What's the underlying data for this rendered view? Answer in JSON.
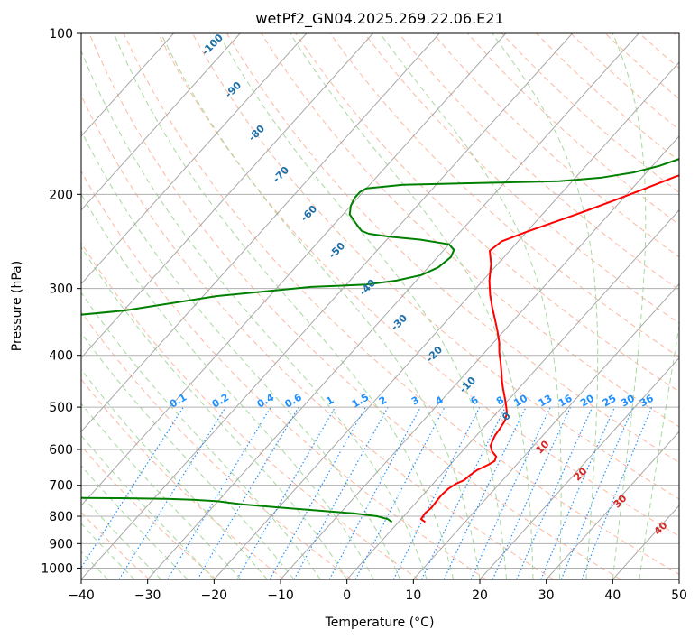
{
  "chart_data": {
    "type": "line",
    "title": "wetPf2_GN04.2025.269.22.06.E21",
    "xlabel": "Temperature (°C)",
    "ylabel": "Pressure (hPa)",
    "xlim": [
      -40,
      50
    ],
    "ylim": [
      1050,
      100
    ],
    "y_scale": "log",
    "grid": true,
    "x_ticks": [
      -40,
      -30,
      -20,
      -10,
      0,
      10,
      20,
      30,
      40,
      50
    ],
    "y_ticks": [
      100,
      200,
      300,
      400,
      500,
      600,
      700,
      800,
      900,
      1000
    ],
    "skew_t": true,
    "series": [
      {
        "id": "temperature",
        "color": "#ff0000",
        "points": [
          [
            4,
            820
          ],
          [
            3,
            810
          ],
          [
            2.8,
            790
          ],
          [
            3,
            770
          ],
          [
            2.9,
            750
          ],
          [
            2.8,
            730
          ],
          [
            3,
            710
          ],
          [
            3.5,
            695
          ],
          [
            4.2,
            685
          ],
          [
            4.4,
            670
          ],
          [
            4.8,
            655
          ],
          [
            5.8,
            640
          ],
          [
            6.2,
            630
          ],
          [
            5.8,
            618
          ],
          [
            4.5,
            605
          ],
          [
            3.5,
            590
          ],
          [
            3.2,
            580
          ],
          [
            2.8,
            565
          ],
          [
            2.6,
            548
          ],
          [
            2.3,
            530
          ],
          [
            1.5,
            512
          ],
          [
            0.3,
            495
          ],
          [
            -1,
            478
          ],
          [
            -2.3,
            462
          ],
          [
            -3.5,
            447
          ],
          [
            -4.8,
            430
          ],
          [
            -6.2,
            413
          ],
          [
            -7.8,
            395
          ],
          [
            -9.2,
            378
          ],
          [
            -11,
            360
          ],
          [
            -13,
            342
          ],
          [
            -15,
            325
          ],
          [
            -17,
            308
          ],
          [
            -19,
            290
          ],
          [
            -21,
            270
          ],
          [
            -23,
            255
          ],
          [
            -22.5,
            245
          ],
          [
            -20,
            235
          ],
          [
            -17,
            225
          ],
          [
            -14,
            215
          ],
          [
            -11,
            205
          ],
          [
            -8,
            195
          ],
          [
            -5,
            185
          ],
          [
            -1,
            177
          ],
          [
            3,
            170
          ],
          [
            7,
            163
          ],
          [
            11,
            155
          ],
          [
            15,
            147
          ],
          [
            19,
            140
          ],
          [
            23,
            132
          ],
          [
            28,
            125
          ],
          [
            33,
            118
          ],
          [
            38,
            112
          ],
          [
            42,
            107
          ],
          [
            45,
            103
          ],
          [
            47,
            100
          ]
        ]
      },
      {
        "id": "dewpoint",
        "color": "#008000",
        "points": [
          [
            -1,
            820
          ],
          [
            -2,
            810
          ],
          [
            -4,
            800
          ],
          [
            -8,
            790
          ],
          [
            -14,
            780
          ],
          [
            -20,
            770
          ],
          [
            -26,
            760
          ],
          [
            -30,
            750
          ],
          [
            -34,
            745
          ],
          [
            -38,
            742
          ],
          [
            -45,
            740
          ],
          [
            -60,
            738
          ],
          [
            -80,
            736
          ],
          [
            -80,
            340
          ],
          [
            -70,
            330
          ],
          [
            -58,
            310
          ],
          [
            -45,
            298
          ],
          [
            -37,
            295
          ],
          [
            -33,
            290
          ],
          [
            -30,
            283
          ],
          [
            -28.5,
            274
          ],
          [
            -28,
            262
          ],
          [
            -28.5,
            254
          ],
          [
            -30,
            248
          ],
          [
            -35,
            243
          ],
          [
            -40,
            240
          ],
          [
            -43.5,
            237
          ],
          [
            -45,
            234
          ],
          [
            -47,
            226
          ],
          [
            -49,
            218
          ],
          [
            -50,
            210
          ],
          [
            -50.5,
            203
          ],
          [
            -50.5,
            198
          ],
          [
            -50,
            195
          ],
          [
            -45,
            192
          ],
          [
            -38,
            191
          ],
          [
            -30,
            190
          ],
          [
            -22,
            189
          ],
          [
            -16,
            186
          ],
          [
            -12,
            182
          ],
          [
            -9,
            177
          ],
          [
            -7,
            172
          ],
          [
            -5.5,
            167
          ],
          [
            -4.5,
            160
          ],
          [
            -4,
            153
          ],
          [
            -3.8,
            145
          ],
          [
            -3.8,
            137
          ],
          [
            -3.5,
            130
          ],
          [
            -2,
            124
          ],
          [
            1,
            119
          ],
          [
            4,
            114
          ],
          [
            6,
            110
          ],
          [
            7.5,
            106
          ],
          [
            8.5,
            103
          ],
          [
            9,
            100
          ]
        ]
      }
    ],
    "isotherms": [
      -100,
      -90,
      -80,
      -70,
      -60,
      -50,
      -40,
      -30,
      -20,
      -10,
      0,
      10,
      20,
      30,
      40,
      50
    ],
    "dry_adiabat_labels": [
      -100,
      -90,
      -80,
      -70,
      -60,
      -50,
      -40,
      -30,
      -20,
      -10
    ],
    "moist_adiabat_labels": [
      0,
      10,
      20,
      30,
      40
    ],
    "mixing_ratio_labels": [
      "0.1",
      "0.2",
      "0.4",
      "0.6",
      "1",
      "1.5",
      "2",
      "3",
      "4",
      "6",
      "8",
      "10",
      "13",
      "16",
      "20",
      "25",
      "30",
      "36"
    ],
    "colors": {
      "temperature": "#ff0000",
      "dewpoint": "#008000",
      "isotherm": "#a8a8a8",
      "dry_adiabat": "#fdb8a0",
      "moist_adiabat": "#a8d8a0",
      "mixing_ratio": "#1e90ff",
      "gridline": "#b0b0b0",
      "dry_label": "#1f6fa8",
      "moist_label": "#d62728"
    }
  }
}
